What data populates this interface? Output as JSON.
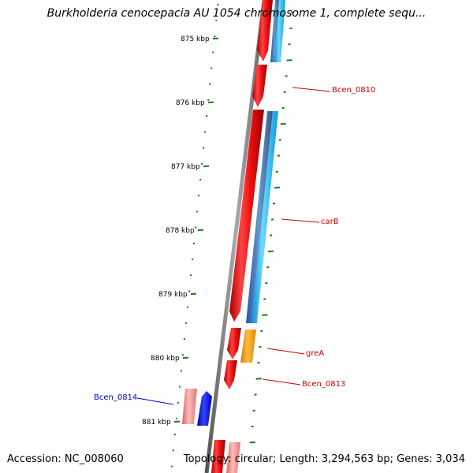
{
  "title": "Burkholderia cenocepacia AU 1054 chromosome 1, complete sequ...",
  "footer": {
    "accession": "Accession: NC_008060",
    "summary": "Topology: circular; Length: 3,294,563 bp; Genes: 3,034"
  },
  "ruler": {
    "ticks": [
      {
        "kbp": 875,
        "label": "875 kbp"
      },
      {
        "kbp": 876,
        "label": "876 kbp"
      },
      {
        "kbp": 877,
        "label": "877 kbp"
      },
      {
        "kbp": 878,
        "label": "878 kbp"
      },
      {
        "kbp": 879,
        "label": "879 kbp"
      },
      {
        "kbp": 880,
        "label": "880 kbp"
      },
      {
        "kbp": 881,
        "label": "881 kbp"
      }
    ]
  },
  "gene_labels": [
    {
      "name": "Bcen_0810",
      "color": "#cc0000"
    },
    {
      "name": "carB",
      "color": "#cc0000"
    },
    {
      "name": "greA",
      "color": "#cc0000"
    },
    {
      "name": "Bcen_0813",
      "color": "#cc0000"
    },
    {
      "name": "Bcen_0814",
      "color": "#0000cc"
    }
  ],
  "colors": {
    "backbone": "#808080",
    "forward_cds": "#ee1111",
    "reverse_cds": "#1144ee",
    "orange_cds": "#ff9900",
    "light_blue": "#33bbee",
    "steel_blue": "#4477aa",
    "pink": "#ee8888",
    "gc_ticks": "#1a7a1a",
    "ruler_ticks": "#1a7a1a"
  }
}
